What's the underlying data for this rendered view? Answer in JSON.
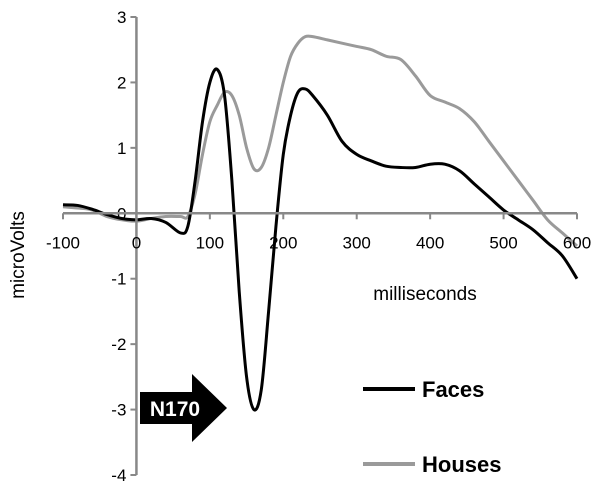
{
  "chart_data": {
    "type": "line",
    "xlabel": "milliseconds",
    "ylabel": "microVolts",
    "xlim": [
      -100,
      600
    ],
    "ylim": [
      -4,
      3
    ],
    "x_ticks": [
      -100,
      0,
      100,
      200,
      300,
      400,
      500,
      600
    ],
    "y_ticks": [
      3,
      2,
      1,
      0,
      -1,
      -2,
      -3,
      -4
    ],
    "grid": false,
    "legend_position": "bottom-right",
    "annotation": {
      "text": "N170",
      "points_to_x": 160
    },
    "series": [
      {
        "name": "Faces",
        "color": "#000000",
        "points": [
          [
            -100,
            0.13
          ],
          [
            -80,
            0.12
          ],
          [
            -60,
            0.06
          ],
          [
            -40,
            -0.02
          ],
          [
            -20,
            -0.08
          ],
          [
            0,
            -0.1
          ],
          [
            20,
            -0.08
          ],
          [
            40,
            -0.14
          ],
          [
            60,
            -0.3
          ],
          [
            70,
            -0.2
          ],
          [
            80,
            0.5
          ],
          [
            90,
            1.4
          ],
          [
            100,
            2.0
          ],
          [
            110,
            2.2
          ],
          [
            120,
            1.8
          ],
          [
            130,
            0.5
          ],
          [
            140,
            -1.2
          ],
          [
            150,
            -2.5
          ],
          [
            160,
            -3.0
          ],
          [
            170,
            -2.7
          ],
          [
            180,
            -1.5
          ],
          [
            190,
            -0.2
          ],
          [
            200,
            0.9
          ],
          [
            210,
            1.5
          ],
          [
            220,
            1.85
          ],
          [
            230,
            1.9
          ],
          [
            240,
            1.8
          ],
          [
            260,
            1.5
          ],
          [
            280,
            1.1
          ],
          [
            300,
            0.9
          ],
          [
            320,
            0.8
          ],
          [
            340,
            0.72
          ],
          [
            360,
            0.7
          ],
          [
            380,
            0.7
          ],
          [
            400,
            0.75
          ],
          [
            420,
            0.75
          ],
          [
            440,
            0.65
          ],
          [
            460,
            0.45
          ],
          [
            480,
            0.25
          ],
          [
            500,
            0.05
          ],
          [
            520,
            -0.1
          ],
          [
            540,
            -0.25
          ],
          [
            560,
            -0.45
          ],
          [
            580,
            -0.65
          ],
          [
            600,
            -1.0
          ]
        ]
      },
      {
        "name": "Houses",
        "color": "#9a9a9a",
        "points": [
          [
            -100,
            0.1
          ],
          [
            -80,
            0.08
          ],
          [
            -60,
            0.05
          ],
          [
            -40,
            -0.05
          ],
          [
            -20,
            -0.1
          ],
          [
            0,
            -0.12
          ],
          [
            20,
            -0.08
          ],
          [
            40,
            -0.05
          ],
          [
            60,
            -0.05
          ],
          [
            70,
            -0.05
          ],
          [
            80,
            0.3
          ],
          [
            90,
            0.9
          ],
          [
            100,
            1.4
          ],
          [
            110,
            1.65
          ],
          [
            120,
            1.85
          ],
          [
            130,
            1.8
          ],
          [
            140,
            1.5
          ],
          [
            150,
            1.0
          ],
          [
            160,
            0.68
          ],
          [
            170,
            0.7
          ],
          [
            180,
            1.0
          ],
          [
            190,
            1.5
          ],
          [
            200,
            2.0
          ],
          [
            210,
            2.4
          ],
          [
            220,
            2.6
          ],
          [
            230,
            2.7
          ],
          [
            240,
            2.7
          ],
          [
            260,
            2.65
          ],
          [
            280,
            2.6
          ],
          [
            300,
            2.55
          ],
          [
            320,
            2.5
          ],
          [
            340,
            2.4
          ],
          [
            360,
            2.35
          ],
          [
            380,
            2.1
          ],
          [
            400,
            1.8
          ],
          [
            420,
            1.7
          ],
          [
            440,
            1.6
          ],
          [
            460,
            1.4
          ],
          [
            480,
            1.1
          ],
          [
            500,
            0.8
          ],
          [
            520,
            0.5
          ],
          [
            540,
            0.2
          ],
          [
            560,
            -0.1
          ],
          [
            580,
            -0.3
          ],
          [
            600,
            -0.5
          ]
        ]
      }
    ]
  }
}
